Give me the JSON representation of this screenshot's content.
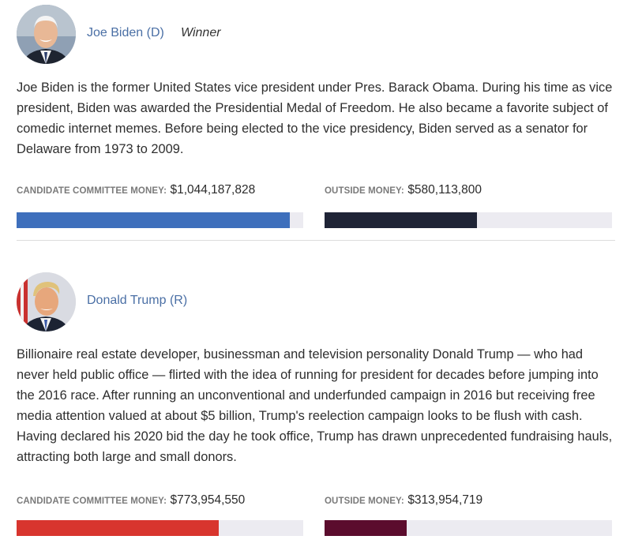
{
  "colors": {
    "dem_committee": "#3e6fbc",
    "dem_outside": "#1f2436",
    "rep_committee": "#d8352e",
    "rep_outside": "#5b0c2d",
    "bar_track": "#ecebf1",
    "name_link": "#4a6fa5"
  },
  "candidates": [
    {
      "name": "Joe Biden (D)",
      "badge": "Winner",
      "avatar_icon": "joe-biden-portrait",
      "bio": "Joe Biden is the former United States vice president under Pres. Barack Obama. During his time as vice president, Biden was awarded the Presidential Medal of Freedom. He also became a favorite subject of comedic internet memes. Before being elected to the vice presidency, Biden served as a senator for Delaware from 1973 to 2009.",
      "committee_label": "CANDIDATE COMMITTEE MONEY:",
      "committee_amount": "$1,044,187,828",
      "committee_fraction": 0.953,
      "outside_label": "OUTSIDE MONEY:",
      "outside_amount": "$580,113,800",
      "outside_fraction": 0.529
    },
    {
      "name": "Donald Trump (R)",
      "avatar_icon": "donald-trump-portrait",
      "bio": "Billionaire real estate developer, businessman and television personality Donald Trump — who had never held public office — flirted with the idea of running for president for decades before jumping into the 2016 race. After running an unconventional and underfunded campaign in 2016 but receiving free media attention valued at about $5 billion, Trump's reelection campaign looks to be flush with cash. Having declared his 2020 bid the day he took office, Trump has drawn unprecedented fundraising hauls, attracting both large and small donors.",
      "committee_label": "CANDIDATE COMMITTEE MONEY:",
      "committee_amount": "$773,954,550",
      "committee_fraction": 0.706,
      "outside_label": "OUTSIDE MONEY:",
      "outside_amount": "$313,954,719",
      "outside_fraction": 0.286
    }
  ]
}
